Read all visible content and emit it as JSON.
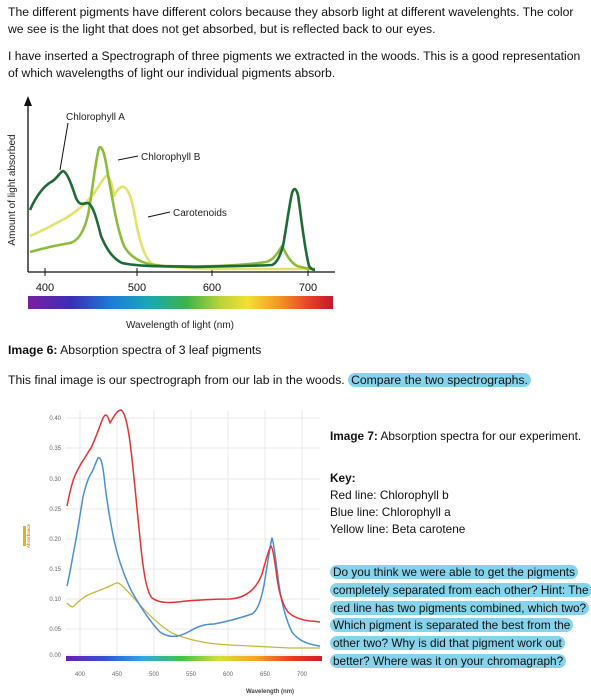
{
  "intro_para1": "The different pigments have different colors because they absorb light at different wavelenghts. The color we see is the light that does not get absorbed, but is reflected back to our eyes.",
  "intro_para2": "I have inserted a Spectrograph of three pigments we extracted in the woods. This is a good representation of which wavelengths of light our individual pigments absorb.",
  "figure1": {
    "ylabel": "Amount of light absorbed",
    "xlabel": "Wavelength of light (nm)",
    "ticks": [
      "400",
      "500",
      "600",
      "700"
    ],
    "labels": {
      "chl_a": "Chlorophyll A",
      "chl_b": "Chlorophyll B",
      "carotenoids": "Carotenoids"
    },
    "colors": {
      "chl_a": "#1e6b35",
      "chl_b": "#8cbc3c",
      "carotenoids": "#e2e36a"
    }
  },
  "image6_caption": {
    "bold": "Image 6:",
    "text": " Absorption spectra of 3 leaf pigments"
  },
  "para3": {
    "plain": "This final image is our spectrograph from our lab in the woods.",
    "highlight": "Compare the two spectrographs."
  },
  "figure2": {
    "ylabel": "Absorbance",
    "xlabel": "Wavelength (nm)",
    "yticks": [
      "0.40",
      "0.35",
      "0.30",
      "0.25",
      "0.20",
      "0.15",
      "0.10",
      "0.05",
      "0.00"
    ],
    "xticks": [
      "400",
      "450",
      "500",
      "550",
      "600",
      "650",
      "700"
    ],
    "colors": {
      "red": "#e03434",
      "blue": "#4a90d0",
      "yellow": "#c8b838"
    }
  },
  "image7_caption": {
    "bold": "Image 7:",
    "text": " Absorption spectra for our experiment."
  },
  "key": {
    "title": "Key:",
    "red": "Red line: Chlorophyll b",
    "blue": "Blue line: Chlorophyll a",
    "yellow": "Yellow line: Beta carotene"
  },
  "question": "Do you think we were able to get the pigments completely separated from each other? Hint: The red line has two pigments combined, which two? Which pigment is separated the best from the other two? Why is did that pigment work out better? Where was it on your chromagraph?"
}
